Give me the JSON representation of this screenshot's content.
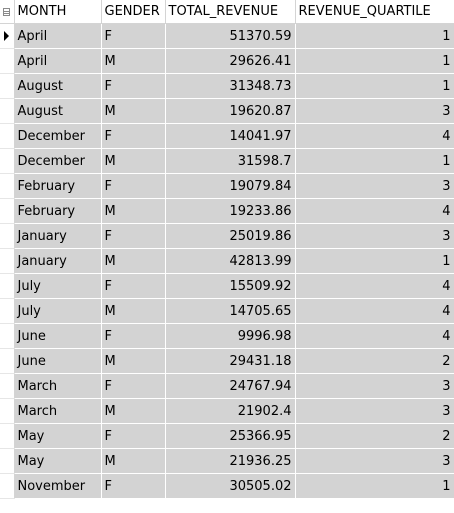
{
  "grid": {
    "columns": [
      "MONTH",
      "GENDER",
      "TOTAL_REVENUE",
      "REVENUE_QUARTILE"
    ],
    "current_row_index": 0,
    "rows": [
      {
        "month": "April",
        "gender": "F",
        "total_revenue": "51370.59",
        "revenue_quartile": "1"
      },
      {
        "month": "April",
        "gender": "M",
        "total_revenue": "29626.41",
        "revenue_quartile": "1"
      },
      {
        "month": "August",
        "gender": "F",
        "total_revenue": "31348.73",
        "revenue_quartile": "1"
      },
      {
        "month": "August",
        "gender": "M",
        "total_revenue": "19620.87",
        "revenue_quartile": "3"
      },
      {
        "month": "December",
        "gender": "F",
        "total_revenue": "14041.97",
        "revenue_quartile": "4"
      },
      {
        "month": "December",
        "gender": "M",
        "total_revenue": "31598.7",
        "revenue_quartile": "1"
      },
      {
        "month": "February",
        "gender": "F",
        "total_revenue": "19079.84",
        "revenue_quartile": "3"
      },
      {
        "month": "February",
        "gender": "M",
        "total_revenue": "19233.86",
        "revenue_quartile": "4"
      },
      {
        "month": "January",
        "gender": "F",
        "total_revenue": "25019.86",
        "revenue_quartile": "3"
      },
      {
        "month": "January",
        "gender": "M",
        "total_revenue": "42813.99",
        "revenue_quartile": "1"
      },
      {
        "month": "July",
        "gender": "F",
        "total_revenue": "15509.92",
        "revenue_quartile": "4"
      },
      {
        "month": "July",
        "gender": "M",
        "total_revenue": "14705.65",
        "revenue_quartile": "4"
      },
      {
        "month": "June",
        "gender": "F",
        "total_revenue": "9996.98",
        "revenue_quartile": "4"
      },
      {
        "month": "June",
        "gender": "M",
        "total_revenue": "29431.18",
        "revenue_quartile": "2"
      },
      {
        "month": "March",
        "gender": "F",
        "total_revenue": "24767.94",
        "revenue_quartile": "3"
      },
      {
        "month": "March",
        "gender": "M",
        "total_revenue": "21902.4",
        "revenue_quartile": "3"
      },
      {
        "month": "May",
        "gender": "F",
        "total_revenue": "25366.95",
        "revenue_quartile": "2"
      },
      {
        "month": "May",
        "gender": "M",
        "total_revenue": "21936.25",
        "revenue_quartile": "3"
      },
      {
        "month": "November",
        "gender": "F",
        "total_revenue": "30505.02",
        "revenue_quartile": "1"
      }
    ]
  },
  "colors": {
    "cell_background": "#d3d3d3",
    "header_background": "#ffffff",
    "grid_line": "#ffffff"
  },
  "icons": {
    "corner": "grid-corner-icon",
    "current_row": "current-row-arrow-icon"
  }
}
